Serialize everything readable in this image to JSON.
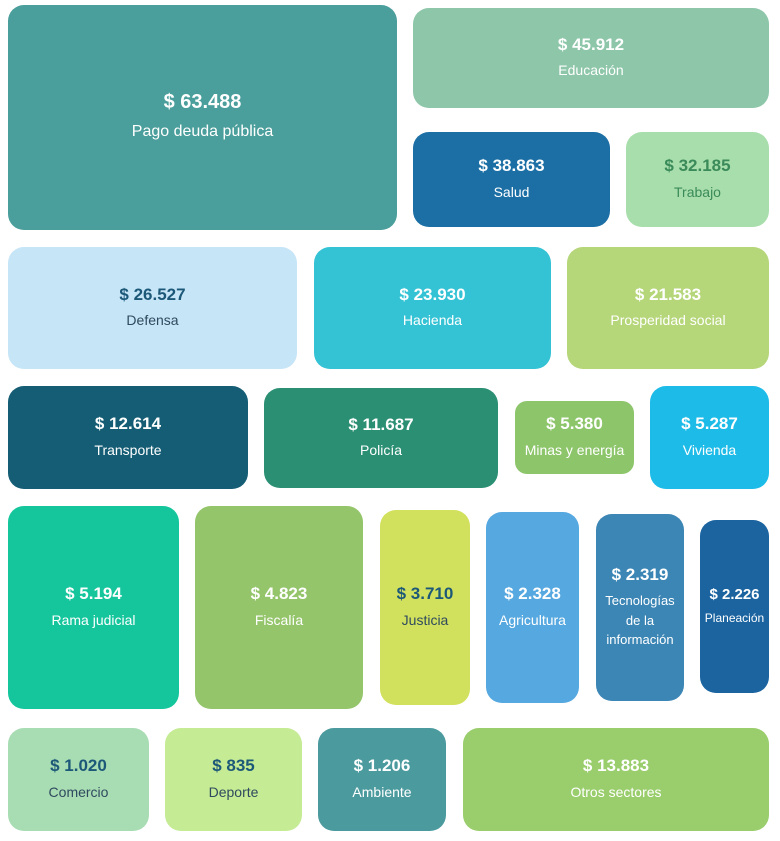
{
  "chart_data": {
    "type": "treemap",
    "currency": "$",
    "items": [
      {
        "label": "Pago deuda pública",
        "value_text": "$ 63.488",
        "value": 63488,
        "color": "#4a9e9b"
      },
      {
        "label": "Educación",
        "value_text": "$ 45.912",
        "value": 45912,
        "color": "#8ec6a9"
      },
      {
        "label": "Salud",
        "value_text": "$ 38.863",
        "value": 38863,
        "color": "#1c6fa5"
      },
      {
        "label": "Trabajo",
        "value_text": "$ 32.185",
        "value": 32185,
        "color": "#a8deab"
      },
      {
        "label": "Defensa",
        "value_text": "$ 26.527",
        "value": 26527,
        "color": "#c6e5f7"
      },
      {
        "label": "Hacienda",
        "value_text": "$ 23.930",
        "value": 23930,
        "color": "#34c3d5"
      },
      {
        "label": "Prosperidad social",
        "value_text": "$ 21.583",
        "value": 21583,
        "color": "#b6d67a"
      },
      {
        "label": "Transporte",
        "value_text": "$ 12.614",
        "value": 12614,
        "color": "#145d74"
      },
      {
        "label": "Policía",
        "value_text": "$ 11.687",
        "value": 11687,
        "color": "#2b8f73"
      },
      {
        "label": "Minas y energía",
        "value_text": "$ 5.380",
        "value": 5380,
        "color": "#8dc56b"
      },
      {
        "label": "Vivienda",
        "value_text": "$ 5.287",
        "value": 5287,
        "color": "#1dbbe8"
      },
      {
        "label": "Rama judicial",
        "value_text": "$ 5.194",
        "value": 5194,
        "color": "#15c69d"
      },
      {
        "label": "Fiscalía",
        "value_text": "$ 4.823",
        "value": 4823,
        "color": "#95c56b"
      },
      {
        "label": "Justicia",
        "value_text": "$ 3.710",
        "value": 3710,
        "color": "#d2e15d"
      },
      {
        "label": "Agricultura",
        "value_text": "$ 2.328",
        "value": 2328,
        "color": "#56a8e0"
      },
      {
        "label": "Tecnologías de la información",
        "value_text": "$ 2.319",
        "value": 2319,
        "color": "#3c86b5"
      },
      {
        "label": "Planeación",
        "value_text": "$ 2.226",
        "value": 2226,
        "color": "#1b64a0"
      },
      {
        "label": "Comercio",
        "value_text": "$ 1.020",
        "value": 1020,
        "color": "#a8dcb3"
      },
      {
        "label": "Deporte",
        "value_text": "$ 835",
        "value": 835,
        "color": "#c5eb94"
      },
      {
        "label": "Ambiente",
        "value_text": "$ 1.206",
        "value": 1206,
        "color": "#4b9a9e"
      },
      {
        "label": "Otros sectores",
        "value_text": "$ 13.883",
        "value": 13883,
        "color": "#9acd6c"
      }
    ]
  }
}
